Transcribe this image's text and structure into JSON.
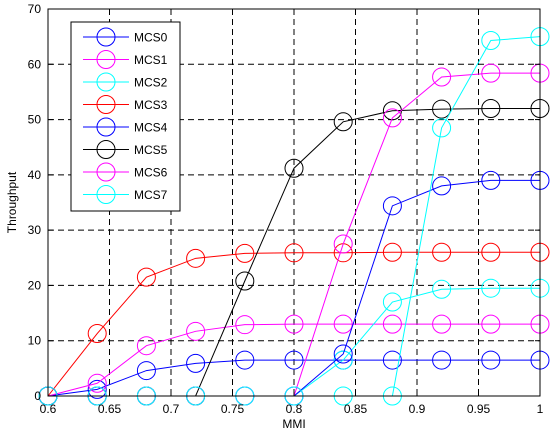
{
  "chart_data": {
    "type": "line",
    "xlabel": "MMI",
    "ylabel": "Throughput",
    "xlim": [
      0.6,
      1.0
    ],
    "ylim": [
      0,
      70
    ],
    "xticks": [
      "0.6",
      "0.65",
      "0.7",
      "0.75",
      "0.8",
      "0.85",
      "0.9",
      "0.95",
      "1"
    ],
    "yticks": [
      "0",
      "10",
      "20",
      "30",
      "40",
      "50",
      "60",
      "70"
    ],
    "grid": true,
    "grid_style": "dashed",
    "legend_position": "top-left",
    "marker": "open-circle",
    "x": [
      0.6,
      0.64,
      0.68,
      0.72,
      0.76,
      0.8,
      0.84,
      0.88,
      0.92,
      0.96,
      1.0
    ],
    "series": [
      {
        "name": "MCS0",
        "color": "#0000ff",
        "values": [
          0,
          1.2,
          4.6,
          5.9,
          6.5,
          6.5,
          6.5,
          6.5,
          6.5,
          6.5,
          6.5
        ]
      },
      {
        "name": "MCS1",
        "color": "#ff00ff",
        "values": [
          0,
          2.3,
          9.1,
          11.7,
          12.9,
          13.0,
          13.0,
          13.0,
          13.0,
          13.0,
          13.0
        ]
      },
      {
        "name": "MCS2",
        "color": "#00ffff",
        "values": [
          0,
          0,
          0,
          0,
          0,
          0,
          6.5,
          17.0,
          19.3,
          19.5,
          19.5
        ]
      },
      {
        "name": "MCS3",
        "color": "#ff0000",
        "values": [
          0,
          11.3,
          21.5,
          24.9,
          25.8,
          25.9,
          25.9,
          26.0,
          26.0,
          26.0,
          26.0
        ]
      },
      {
        "name": "MCS4",
        "color": "#0000ff",
        "values": [
          0,
          0,
          0,
          0,
          0,
          0,
          7.6,
          34.4,
          38.0,
          39.0,
          39.0
        ]
      },
      {
        "name": "MCS5",
        "color": "#000000",
        "values": [
          0,
          0,
          0,
          0,
          20.8,
          41.2,
          49.6,
          51.6,
          51.9,
          52.0,
          52.0
        ]
      },
      {
        "name": "MCS6",
        "color": "#ff00ff",
        "values": [
          0,
          0,
          0,
          0,
          0,
          0,
          27.5,
          50.3,
          57.7,
          58.4,
          58.4
        ]
      },
      {
        "name": "MCS7",
        "color": "#00ffff",
        "values": [
          0,
          0,
          0,
          0,
          0,
          0,
          0,
          0,
          48.5,
          64.3,
          65.0
        ]
      }
    ]
  }
}
